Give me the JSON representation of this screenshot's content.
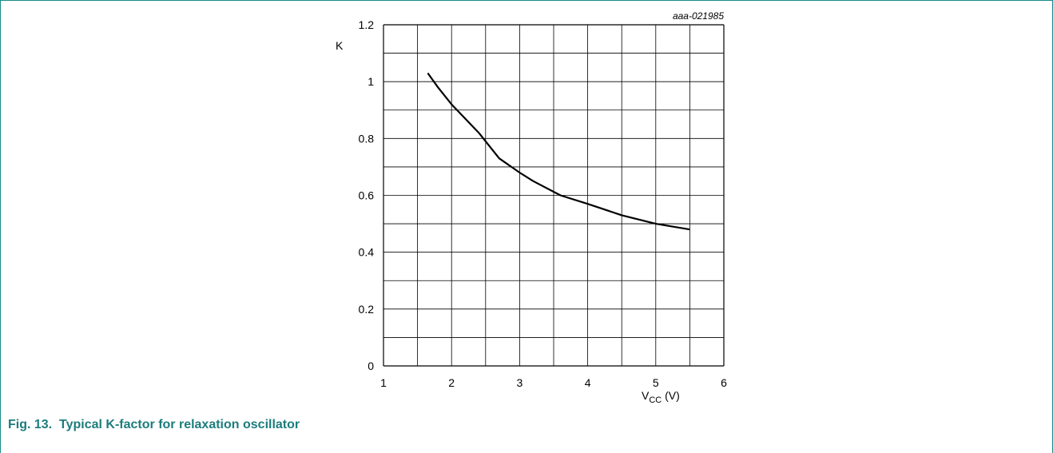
{
  "figure": {
    "id_label": "aaa-021985",
    "caption": "Fig. 13.  Typical K-factor for relaxation oscillator"
  },
  "chart_data": {
    "type": "line",
    "title": "",
    "xlabel": "V",
    "xlabel_sub": "CC",
    "xlabel_unit": " (V)",
    "ylabel": "K",
    "xlim": [
      1,
      6
    ],
    "ylim": [
      0,
      1.2
    ],
    "x_ticks": [
      "1",
      "2",
      "3",
      "4",
      "5",
      "6"
    ],
    "y_ticks": [
      "0",
      "0.2",
      "0.4",
      "0.6",
      "0.8",
      "1",
      "1.2"
    ],
    "grid": true,
    "series": [
      {
        "x": [
          1.65,
          1.8,
          2.0,
          2.2,
          2.4,
          2.7,
          3.0,
          3.2,
          3.6,
          4.0,
          4.5,
          5.0,
          5.5
        ],
        "y": [
          1.03,
          0.98,
          0.92,
          0.87,
          0.82,
          0.73,
          0.68,
          0.65,
          0.6,
          0.57,
          0.53,
          0.5,
          0.48
        ]
      }
    ],
    "colors": {
      "line": "#000000",
      "grid": "#000000",
      "caption": "#1d7c7c",
      "frame": "#1a8b8b"
    }
  }
}
